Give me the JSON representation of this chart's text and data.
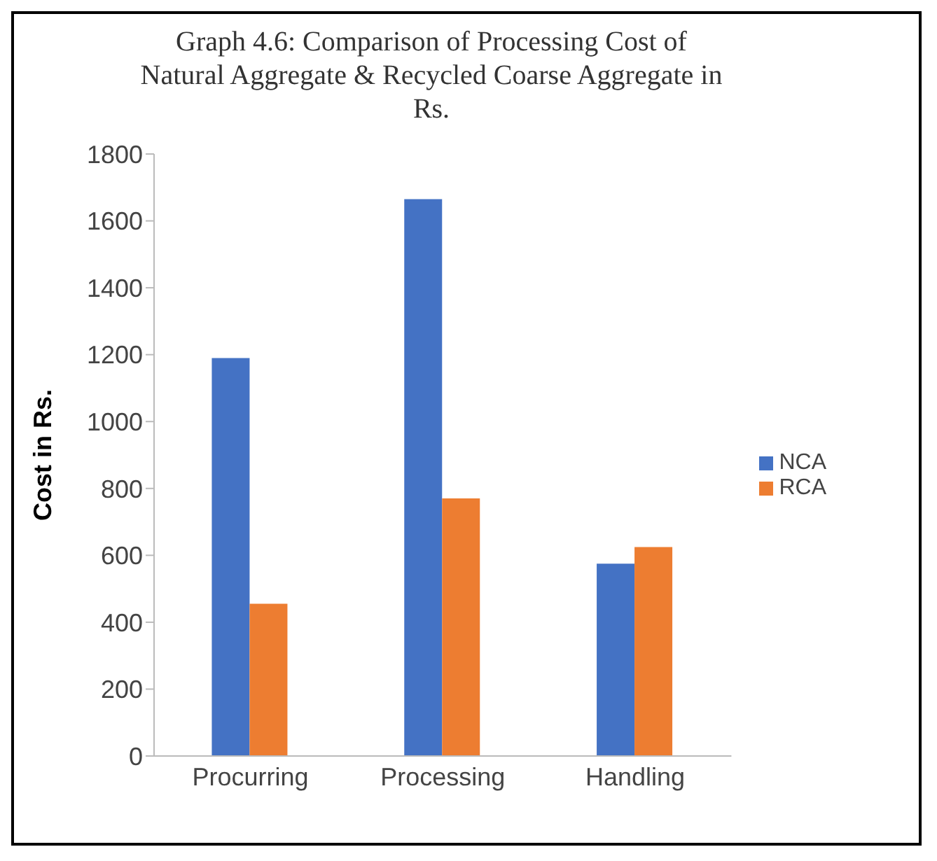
{
  "chart_data": {
    "type": "bar",
    "title": "Graph 4.6: Comparison of Processing Cost of Natural Aggregate & Recycled Coarse Aggregate in Rs.",
    "ylabel": "Cost in Rs.",
    "categories": [
      "Procurring",
      "Processing",
      "Handling"
    ],
    "series": [
      {
        "name": "NCA",
        "color": "#4472c4",
        "values": [
          1190,
          1665,
          575
        ]
      },
      {
        "name": "RCA",
        "color": "#ed7d31",
        "values": [
          455,
          770,
          625
        ]
      }
    ],
    "ylim": [
      0,
      1800
    ],
    "yticks": [
      0,
      200,
      400,
      600,
      800,
      1000,
      1200,
      1400,
      1600,
      1800
    ],
    "grid": false,
    "legend": "right"
  }
}
